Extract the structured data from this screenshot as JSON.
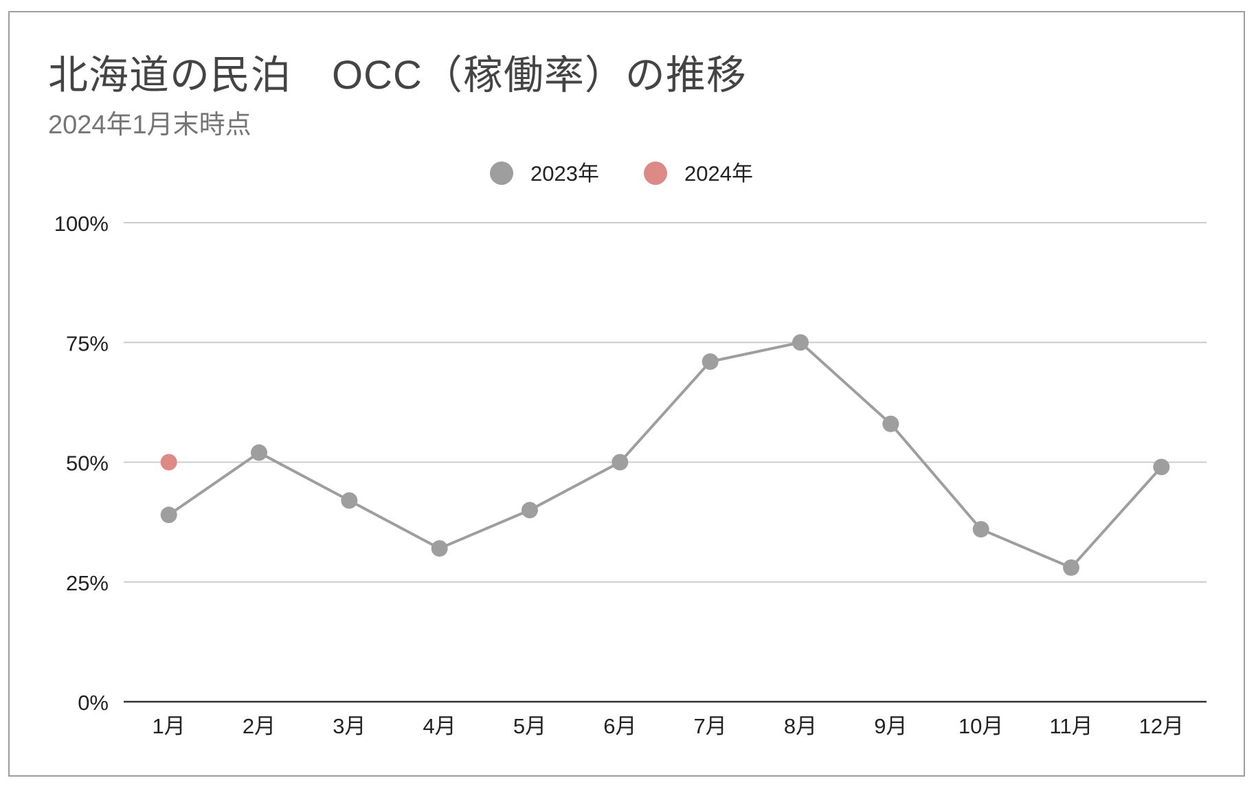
{
  "chart_data": {
    "type": "line",
    "title": "北海道の民泊　OCC（稼働率）の推移",
    "subtitle": "2024年1月末時点",
    "categories": [
      "1月",
      "2月",
      "3月",
      "4月",
      "5月",
      "6月",
      "7月",
      "8月",
      "9月",
      "10月",
      "11月",
      "12月"
    ],
    "series": [
      {
        "name": "2023年",
        "color": "#9e9e9e",
        "values": [
          39,
          52,
          42,
          32,
          40,
          50,
          71,
          75,
          58,
          36,
          28,
          49
        ]
      },
      {
        "name": "2024年",
        "color": "#dd8a86",
        "values": [
          50,
          null,
          null,
          null,
          null,
          null,
          null,
          null,
          null,
          null,
          null,
          null
        ]
      }
    ],
    "y_ticks": [
      "0%",
      "25%",
      "50%",
      "75%",
      "100%"
    ],
    "ylim": [
      0,
      100
    ],
    "y_tick_values": [
      0,
      25,
      50,
      75,
      100
    ],
    "xlabel": "",
    "ylabel": "",
    "grid": true,
    "legend_position": "top-center"
  }
}
